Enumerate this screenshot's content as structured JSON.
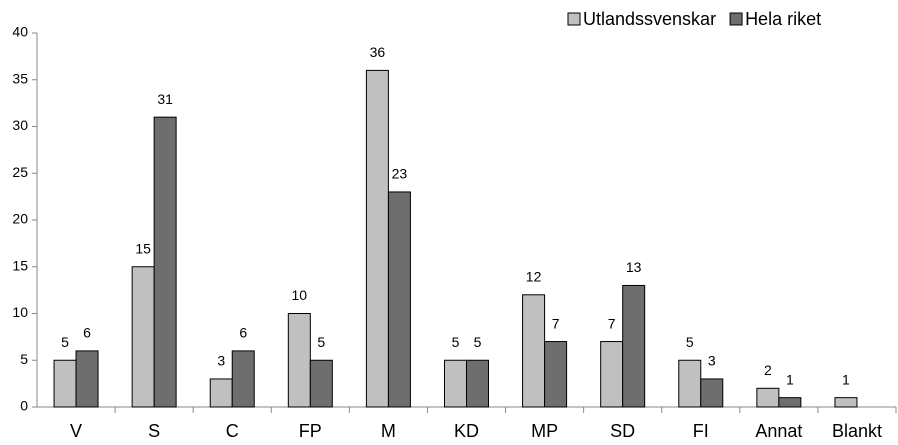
{
  "chart_data": {
    "type": "bar",
    "categories": [
      "V",
      "S",
      "C",
      "FP",
      "M",
      "KD",
      "MP",
      "SD",
      "FI",
      "Annat",
      "Blankt"
    ],
    "series": [
      {
        "name": "Utlandssvenskar",
        "color": "#c0c0c0",
        "values": [
          5,
          15,
          3,
          10,
          36,
          5,
          12,
          7,
          5,
          2,
          1
        ]
      },
      {
        "name": "Hela riket",
        "color": "#6e6e6e",
        "values": [
          6,
          31,
          6,
          5,
          23,
          5,
          7,
          13,
          3,
          1,
          null
        ]
      }
    ],
    "ylim": [
      0,
      40
    ],
    "yticks": [
      0,
      5,
      10,
      15,
      20,
      25,
      30,
      35,
      40
    ],
    "grid": false,
    "legend": "top-right"
  }
}
